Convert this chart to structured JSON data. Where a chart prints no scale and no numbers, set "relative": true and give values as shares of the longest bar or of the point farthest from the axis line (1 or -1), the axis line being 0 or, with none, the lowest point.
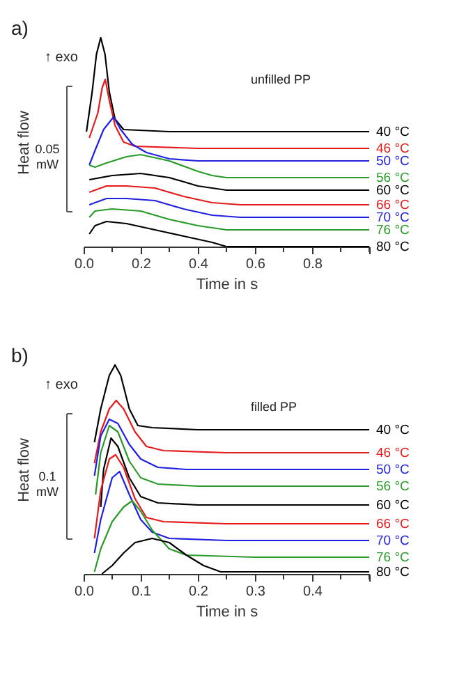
{
  "chart_data": [
    {
      "type": "line",
      "relative": true,
      "xlabel": "Time in s",
      "ylabel": "Heat flow",
      "xlim": [
        0,
        1.0
      ],
      "xticks": [
        {
          "value": 0,
          "label": "0.0"
        },
        {
          "value": 0.1,
          "label": null
        },
        {
          "value": 0.2,
          "label": "0.2"
        },
        {
          "value": 0.3,
          "label": null
        },
        {
          "value": 0.4,
          "label": "0.4"
        },
        {
          "value": 0.5,
          "label": null
        },
        {
          "value": 0.6,
          "label": "0.6"
        },
        {
          "value": 0.7,
          "label": null
        },
        {
          "value": 0.8,
          "label": "0.8"
        },
        {
          "value": 0.9,
          "label": null
        },
        {
          "value": 1.0,
          "label": null
        }
      ],
      "grid": false,
      "annotations": [
        "a)",
        "↑ exo",
        "unfilled PP",
        "0.05 mW"
      ],
      "series": [
        {
          "name": "40 °C",
          "color": "#000000",
          "x": [
            0.01,
            0.03,
            0.045,
            0.06,
            0.075,
            0.09,
            0.11,
            0.14,
            0.3,
            0.5,
            0.7,
            1.0
          ],
          "values": [
            0.55,
            0.74,
            0.92,
            1.0,
            0.92,
            0.74,
            0.61,
            0.56,
            0.55,
            0.55,
            0.55,
            0.55
          ]
        },
        {
          "name": "46 °C",
          "color": "#e41a1c",
          "x": [
            0.02,
            0.05,
            0.065,
            0.076,
            0.09,
            0.11,
            0.14,
            0.18,
            0.4,
            0.7,
            1.0
          ],
          "values": [
            0.52,
            0.64,
            0.76,
            0.8,
            0.7,
            0.58,
            0.5,
            0.48,
            0.47,
            0.47,
            0.47
          ]
        },
        {
          "name": "50 °C",
          "color": "#2020e0",
          "x": [
            0.02,
            0.04,
            0.07,
            0.105,
            0.13,
            0.17,
            0.22,
            0.3,
            0.4,
            0.7,
            1.0
          ],
          "values": [
            0.39,
            0.46,
            0.56,
            0.62,
            0.56,
            0.49,
            0.45,
            0.42,
            0.41,
            0.41,
            0.41
          ]
        },
        {
          "name": "56 °C",
          "color": "#2a9a2a",
          "x": [
            0.02,
            0.04,
            0.08,
            0.15,
            0.2,
            0.3,
            0.4,
            0.45,
            0.5,
            0.7,
            1.0
          ],
          "values": [
            0.39,
            0.38,
            0.4,
            0.43,
            0.44,
            0.41,
            0.36,
            0.34,
            0.33,
            0.33,
            0.33
          ]
        },
        {
          "name": "60 °C",
          "color": "#000000",
          "x": [
            0.02,
            0.1,
            0.2,
            0.3,
            0.4,
            0.5,
            0.7,
            1.0
          ],
          "values": [
            0.32,
            0.34,
            0.35,
            0.33,
            0.29,
            0.27,
            0.27,
            0.27
          ]
        },
        {
          "name": "66 °C",
          "color": "#e41a1c",
          "x": [
            0.02,
            0.08,
            0.15,
            0.25,
            0.35,
            0.45,
            0.55,
            0.7,
            1.0
          ],
          "values": [
            0.26,
            0.29,
            0.29,
            0.28,
            0.24,
            0.21,
            0.2,
            0.2,
            0.2
          ]
        },
        {
          "name": "70 °C",
          "color": "#2020e0",
          "x": [
            0.02,
            0.08,
            0.15,
            0.25,
            0.35,
            0.45,
            0.55,
            0.7,
            1.0
          ],
          "values": [
            0.2,
            0.23,
            0.23,
            0.22,
            0.18,
            0.15,
            0.14,
            0.14,
            0.14
          ]
        },
        {
          "name": "76 °C",
          "color": "#2a9a2a",
          "x": [
            0.02,
            0.04,
            0.1,
            0.2,
            0.3,
            0.4,
            0.5,
            0.6,
            0.8,
            1.0
          ],
          "values": [
            0.14,
            0.17,
            0.18,
            0.17,
            0.13,
            0.1,
            0.08,
            0.08,
            0.08,
            0.08
          ]
        },
        {
          "name": "80 °C",
          "color": "#000000",
          "x": [
            0.02,
            0.04,
            0.08,
            0.15,
            0.25,
            0.35,
            0.45,
            0.5,
            0.6,
            0.8,
            1.0
          ],
          "values": [
            0.06,
            0.1,
            0.12,
            0.11,
            0.08,
            0.05,
            0.02,
            0.0,
            0.0,
            0.0,
            0.0
          ]
        }
      ]
    },
    {
      "type": "line",
      "relative": true,
      "xlabel": "Time in s",
      "ylabel": "Heat flow",
      "xlim": [
        0,
        0.5
      ],
      "xticks": [
        {
          "value": 0,
          "label": "0.0"
        },
        {
          "value": 0.05,
          "label": null
        },
        {
          "value": 0.1,
          "label": "0.1"
        },
        {
          "value": 0.15,
          "label": null
        },
        {
          "value": 0.2,
          "label": "0.2"
        },
        {
          "value": 0.25,
          "label": null
        },
        {
          "value": 0.3,
          "label": "0.3"
        },
        {
          "value": 0.35,
          "label": null
        },
        {
          "value": 0.4,
          "label": "0.4"
        },
        {
          "value": 0.45,
          "label": null
        },
        {
          "value": 0.5,
          "label": null
        }
      ],
      "grid": false,
      "annotations": [
        "b)",
        "↑ exo",
        "filled PP",
        "0.1 mW"
      ],
      "series": [
        {
          "name": "40 °C",
          "color": "#000000",
          "x": [
            0.019,
            0.03,
            0.045,
            0.055,
            0.065,
            0.08,
            0.095,
            0.12,
            0.2,
            0.35,
            0.5
          ],
          "values": [
            0.63,
            0.79,
            0.95,
            1.0,
            0.95,
            0.79,
            0.71,
            0.7,
            0.69,
            0.69,
            0.69
          ]
        },
        {
          "name": "46 °C",
          "color": "#e41a1c",
          "x": [
            0.019,
            0.03,
            0.045,
            0.057,
            0.07,
            0.09,
            0.11,
            0.14,
            0.25,
            0.5
          ],
          "values": [
            0.53,
            0.68,
            0.79,
            0.83,
            0.79,
            0.68,
            0.61,
            0.59,
            0.58,
            0.58
          ]
        },
        {
          "name": "50 °C",
          "color": "#2020e0",
          "x": [
            0.019,
            0.03,
            0.045,
            0.06,
            0.08,
            0.1,
            0.13,
            0.18,
            0.3,
            0.5
          ],
          "values": [
            0.47,
            0.66,
            0.74,
            0.72,
            0.62,
            0.55,
            0.51,
            0.5,
            0.5,
            0.5
          ]
        },
        {
          "name": "56 °C",
          "color": "#2a9a2a",
          "x": [
            0.021,
            0.03,
            0.045,
            0.06,
            0.08,
            0.1,
            0.13,
            0.2,
            0.5
          ],
          "values": [
            0.38,
            0.58,
            0.71,
            0.68,
            0.54,
            0.46,
            0.43,
            0.42,
            0.42
          ]
        },
        {
          "name": "60 °C",
          "color": "#000000",
          "x": [
            0.03,
            0.035,
            0.048,
            0.06,
            0.08,
            0.1,
            0.13,
            0.2,
            0.5
          ],
          "values": [
            0.32,
            0.5,
            0.65,
            0.61,
            0.46,
            0.37,
            0.34,
            0.33,
            0.33
          ]
        },
        {
          "name": "66 °C",
          "color": "#e41a1c",
          "x": [
            0.019,
            0.03,
            0.045,
            0.056,
            0.07,
            0.09,
            0.11,
            0.14,
            0.25,
            0.5
          ],
          "values": [
            0.17,
            0.4,
            0.55,
            0.57,
            0.51,
            0.36,
            0.27,
            0.25,
            0.24,
            0.24
          ]
        },
        {
          "name": "70 °C",
          "color": "#2020e0",
          "x": [
            0.019,
            0.03,
            0.05,
            0.063,
            0.08,
            0.1,
            0.12,
            0.15,
            0.25,
            0.5
          ],
          "values": [
            0.1,
            0.26,
            0.46,
            0.49,
            0.38,
            0.26,
            0.2,
            0.17,
            0.16,
            0.16
          ]
        },
        {
          "name": "76 °C",
          "color": "#2a9a2a",
          "x": [
            0.019,
            0.03,
            0.05,
            0.07,
            0.085,
            0.1,
            0.12,
            0.15,
            0.18,
            0.3,
            0.5
          ],
          "values": [
            0.01,
            0.12,
            0.25,
            0.32,
            0.35,
            0.3,
            0.21,
            0.12,
            0.09,
            0.08,
            0.08
          ]
        },
        {
          "name": "80 °C",
          "color": "#000000",
          "x": [
            0.032,
            0.05,
            0.07,
            0.09,
            0.12,
            0.15,
            0.18,
            0.21,
            0.24,
            0.35,
            0.5
          ],
          "values": [
            0.0,
            0.04,
            0.1,
            0.15,
            0.17,
            0.15,
            0.09,
            0.04,
            0.01,
            0.01,
            0.01
          ]
        }
      ]
    }
  ]
}
